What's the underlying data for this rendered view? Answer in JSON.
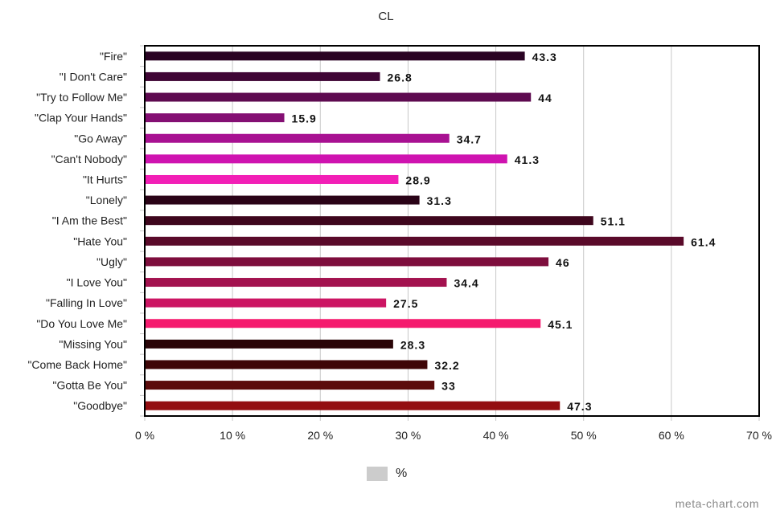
{
  "chart_data": {
    "type": "bar",
    "orientation": "horizontal",
    "title": "CL",
    "categories": [
      "\"Fire\"",
      "\"I Don't Care\"",
      "\"Try to Follow Me\"",
      "\"Clap Your Hands\"",
      "\"Go Away\"",
      "\"Can't Nobody\"",
      "\"It Hurts\"",
      "\"Lonely\"",
      "\"I Am the Best\"",
      "\"Hate You\"",
      "\"Ugly\"",
      "\"I Love You\"",
      "\"Falling In Love\"",
      "\"Do You Love Me\"",
      "\"Missing You\"",
      "\"Come Back Home\"",
      "\"Gotta Be You\"",
      "\"Goodbye\""
    ],
    "series": [
      {
        "name": "%",
        "values": [
          43.3,
          26.8,
          44,
          15.9,
          34.7,
          41.3,
          28.9,
          31.3,
          51.1,
          61.4,
          46,
          34.4,
          27.5,
          45.1,
          28.3,
          32.2,
          33,
          47.3
        ]
      }
    ],
    "value_labels": [
      "43.3",
      "26.8",
      "44",
      "15.9",
      "34.7",
      "41.3",
      "28.9",
      "31.3",
      "51.1",
      "61.4",
      "46",
      "34.4",
      "27.5",
      "45.1",
      "28.3",
      "32.2",
      "33",
      "47.3"
    ],
    "xlim": [
      0,
      70
    ],
    "x_ticks": [
      0,
      10,
      20,
      30,
      40,
      50,
      60,
      70
    ],
    "x_tick_labels": [
      "0 %",
      "10 %",
      "20 %",
      "30 %",
      "40 %",
      "50 %",
      "60 %",
      "70 %"
    ],
    "grid": true,
    "legend_position": "bottom",
    "bar_colors": [
      "#2a0323",
      "#3f0535",
      "#5e0a50",
      "#840f73",
      "#a81192",
      "#cf13b0",
      "#f21fb6",
      "#2a0317",
      "#3e061d",
      "#5a0a2a",
      "#7e0e3d",
      "#a3124f",
      "#cc1563",
      "#f51a6e",
      "#2a0508",
      "#3f0607",
      "#5c0b0b",
      "#930d10"
    ],
    "legend_swatch_color": "#cccccc"
  },
  "watermark": "meta-chart.com"
}
